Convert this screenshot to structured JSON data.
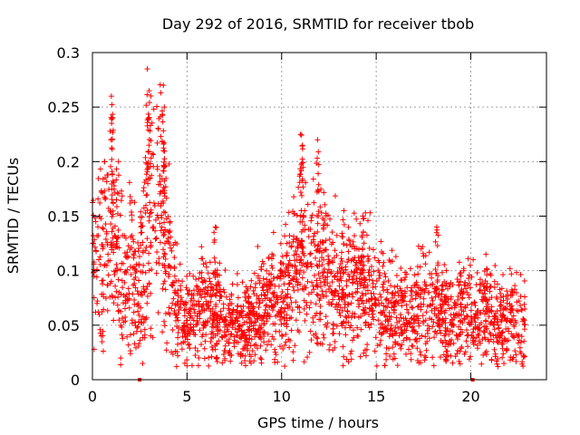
{
  "chart_data": {
    "type": "scatter",
    "title": "Day 292 of 2016, SRMTID for receiver tbob",
    "xlabel": "GPS time / hours",
    "ylabel": "SRMTID / TECUs",
    "xlim": [
      0,
      24
    ],
    "ylim": [
      0,
      0.3
    ],
    "xticks": [
      0,
      5,
      10,
      15,
      20
    ],
    "xtick_labels": [
      "0",
      "5",
      "10",
      "15",
      "20"
    ],
    "yticks": [
      0,
      0.05,
      0.1,
      0.15,
      0.2,
      0.25,
      0.3
    ],
    "ytick_labels": [
      "0",
      "0.05",
      "0.1",
      "0.15",
      "0.2",
      "0.25",
      "0.3"
    ],
    "grid": true,
    "marker": "+",
    "color": "#ff0000",
    "x_end": 22.9,
    "gap_markers_x": [
      2.5,
      20.1
    ],
    "trend": [
      [
        0.0,
        0.12
      ],
      [
        0.5,
        0.11
      ],
      [
        1.0,
        0.13
      ],
      [
        1.5,
        0.1
      ],
      [
        2.0,
        0.1
      ],
      [
        2.5,
        0.09
      ],
      [
        3.0,
        0.14
      ],
      [
        3.5,
        0.15
      ],
      [
        4.0,
        0.12
      ],
      [
        4.5,
        0.06
      ],
      [
        5.0,
        0.05
      ],
      [
        5.5,
        0.06
      ],
      [
        6.0,
        0.07
      ],
      [
        6.5,
        0.06
      ],
      [
        7.0,
        0.055
      ],
      [
        7.5,
        0.05
      ],
      [
        8.0,
        0.045
      ],
      [
        8.5,
        0.055
      ],
      [
        9.0,
        0.065
      ],
      [
        9.5,
        0.07
      ],
      [
        10.0,
        0.075
      ],
      [
        10.5,
        0.09
      ],
      [
        11.0,
        0.11
      ],
      [
        11.5,
        0.1
      ],
      [
        12.0,
        0.1
      ],
      [
        12.5,
        0.09
      ],
      [
        13.0,
        0.085
      ],
      [
        13.5,
        0.08
      ],
      [
        14.0,
        0.09
      ],
      [
        14.5,
        0.085
      ],
      [
        15.0,
        0.075
      ],
      [
        15.5,
        0.065
      ],
      [
        16.0,
        0.06
      ],
      [
        16.5,
        0.06
      ],
      [
        17.0,
        0.06
      ],
      [
        17.5,
        0.065
      ],
      [
        18.0,
        0.07
      ],
      [
        18.5,
        0.06
      ],
      [
        19.0,
        0.055
      ],
      [
        19.5,
        0.06
      ],
      [
        20.0,
        0.065
      ],
      [
        20.5,
        0.06
      ],
      [
        21.0,
        0.055
      ],
      [
        21.5,
        0.05
      ],
      [
        22.0,
        0.055
      ],
      [
        22.9,
        0.05
      ]
    ],
    "spikes": [
      {
        "x": 1.0,
        "y": 0.26
      },
      {
        "x": 1.05,
        "y": 0.24
      },
      {
        "x": 2.9,
        "y": 0.285
      },
      {
        "x": 3.0,
        "y": 0.265
      },
      {
        "x": 3.75,
        "y": 0.27
      },
      {
        "x": 3.8,
        "y": 0.25
      },
      {
        "x": 11.0,
        "y": 0.225
      },
      {
        "x": 11.1,
        "y": 0.215
      },
      {
        "x": 11.9,
        "y": 0.22
      },
      {
        "x": 20.8,
        "y": 0.115
      },
      {
        "x": 18.2,
        "y": 0.14
      },
      {
        "x": 14.3,
        "y": 0.15
      },
      {
        "x": 6.5,
        "y": 0.14
      }
    ]
  }
}
